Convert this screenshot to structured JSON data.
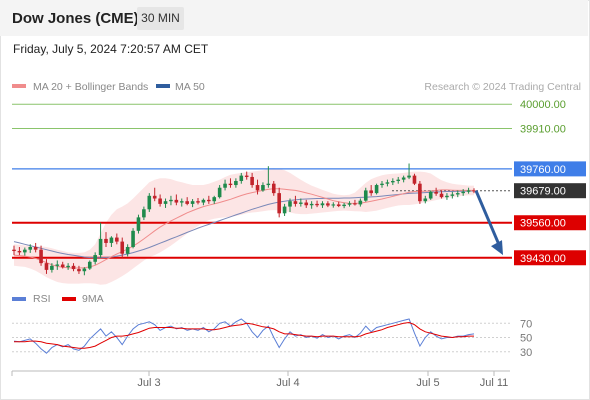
{
  "header": {
    "instrument": "Dow Jones (CME)",
    "timeframe": "30 MIN"
  },
  "datetime": "Friday, July 5, 2024 7:20:57 AM CET",
  "legend": {
    "items": [
      {
        "label": "MA 20 + Bollinger Bands",
        "color": "#f08c8c"
      },
      {
        "label": "MA 50",
        "color": "#2f5d9e"
      }
    ],
    "credit": "Research © 2024 Trading Central"
  },
  "rsi_legend": {
    "items": [
      {
        "label": "RSI",
        "color": "#5b7fd6"
      },
      {
        "label": "9MA",
        "color": "#e00000"
      }
    ]
  },
  "chart_data": {
    "type": "candlestick",
    "price_axis": {
      "range": [
        39340,
        40090
      ]
    },
    "levels": [
      {
        "value": 40000.0,
        "label": "40000.00",
        "type": "target",
        "color": "#8ac46b"
      },
      {
        "value": 39910.0,
        "label": "39910.00",
        "type": "target",
        "color": "#8ac46b"
      },
      {
        "value": 39760.0,
        "label": "39760.00",
        "type": "pivot",
        "color": "#3f7ee8"
      },
      {
        "value": 39679.0,
        "label": "39679.00",
        "type": "last_price",
        "color": "#333333"
      },
      {
        "value": 39560.0,
        "label": "39560.00",
        "type": "support",
        "color": "#dd0000"
      },
      {
        "value": 39430.0,
        "label": "39430.00",
        "type": "support",
        "color": "#dd0000"
      }
    ],
    "forecast": {
      "from": 39679,
      "to": 39440,
      "direction": "down"
    },
    "x_axis": {
      "ticks": [
        "Jul 3",
        "Jul 4",
        "Jul 5",
        "Jul 11"
      ]
    },
    "candles": [
      [
        39460,
        39475,
        39440,
        39455
      ],
      [
        39455,
        39470,
        39440,
        39450
      ],
      [
        39450,
        39468,
        39438,
        39460
      ],
      [
        39460,
        39480,
        39448,
        39470
      ],
      [
        39470,
        39485,
        39450,
        39460
      ],
      [
        39460,
        39475,
        39400,
        39410
      ],
      [
        39410,
        39425,
        39370,
        39385
      ],
      [
        39385,
        39410,
        39375,
        39400
      ],
      [
        39400,
        39420,
        39385,
        39405
      ],
      [
        39405,
        39415,
        39390,
        39395
      ],
      [
        39395,
        39410,
        39385,
        39400
      ],
      [
        39400,
        39410,
        39380,
        39388
      ],
      [
        39388,
        39400,
        39370,
        39380
      ],
      [
        39380,
        39395,
        39365,
        39390
      ],
      [
        39390,
        39420,
        39385,
        39415
      ],
      [
        39415,
        39450,
        39405,
        39440
      ],
      [
        39440,
        39560,
        39430,
        39500
      ],
      [
        39500,
        39525,
        39470,
        39485
      ],
      [
        39485,
        39510,
        39470,
        39505
      ],
      [
        39505,
        39520,
        39480,
        39490
      ],
      [
        39490,
        39505,
        39430,
        39445
      ],
      [
        39445,
        39480,
        39435,
        39470
      ],
      [
        39470,
        39540,
        39465,
        39530
      ],
      [
        39530,
        39590,
        39520,
        39580
      ],
      [
        39580,
        39620,
        39570,
        39610
      ],
      [
        39610,
        39670,
        39600,
        39660
      ],
      [
        39660,
        39690,
        39640,
        39650
      ],
      [
        39650,
        39665,
        39620,
        39630
      ],
      [
        39630,
        39650,
        39615,
        39640
      ],
      [
        39640,
        39660,
        39625,
        39645
      ],
      [
        39645,
        39665,
        39625,
        39635
      ],
      [
        39635,
        39650,
        39620,
        39640
      ],
      [
        39640,
        39655,
        39625,
        39630
      ],
      [
        39630,
        39648,
        39618,
        39640
      ],
      [
        39640,
        39652,
        39628,
        39635
      ],
      [
        39635,
        39650,
        39625,
        39645
      ],
      [
        39645,
        39660,
        39630,
        39640
      ],
      [
        39640,
        39660,
        39630,
        39655
      ],
      [
        39655,
        39700,
        39650,
        39690
      ],
      [
        39690,
        39720,
        39680,
        39705
      ],
      [
        39705,
        39725,
        39690,
        39700
      ],
      [
        39700,
        39725,
        39690,
        39715
      ],
      [
        39715,
        39745,
        39705,
        39735
      ],
      [
        39735,
        39750,
        39720,
        39730
      ],
      [
        39730,
        39745,
        39690,
        39700
      ],
      [
        39700,
        39720,
        39665,
        39680
      ],
      [
        39680,
        39710,
        39675,
        39700
      ],
      [
        39700,
        39770,
        39690,
        39705
      ],
      [
        39705,
        39715,
        39660,
        39670
      ],
      [
        39670,
        39690,
        39580,
        39595
      ],
      [
        39595,
        39630,
        39585,
        39620
      ],
      [
        39620,
        39650,
        39600,
        39640
      ],
      [
        39640,
        39660,
        39620,
        39630
      ],
      [
        39630,
        39650,
        39620,
        39635
      ],
      [
        39635,
        39645,
        39615,
        39625
      ],
      [
        39625,
        39640,
        39612,
        39630
      ],
      [
        39630,
        39642,
        39618,
        39625
      ],
      [
        39625,
        39640,
        39615,
        39632
      ],
      [
        39632,
        39640,
        39618,
        39624
      ],
      [
        39624,
        39636,
        39616,
        39628
      ],
      [
        39628,
        39638,
        39618,
        39622
      ],
      [
        39622,
        39634,
        39614,
        39627
      ],
      [
        39627,
        39640,
        39620,
        39632
      ],
      [
        39632,
        39645,
        39624,
        39628
      ],
      [
        39628,
        39650,
        39620,
        39642
      ],
      [
        39642,
        39690,
        39638,
        39680
      ],
      [
        39680,
        39700,
        39660,
        39670
      ],
      [
        39670,
        39705,
        39665,
        39700
      ],
      [
        39700,
        39715,
        39690,
        39705
      ],
      [
        39705,
        39720,
        39695,
        39710
      ],
      [
        39710,
        39725,
        39700,
        39715
      ],
      [
        39715,
        39730,
        39705,
        39720
      ],
      [
        39720,
        39735,
        39710,
        39728
      ],
      [
        39728,
        39780,
        39722,
        39735
      ],
      [
        39735,
        39742,
        39700,
        39705
      ],
      [
        39705,
        39715,
        39630,
        39640
      ],
      [
        39640,
        39660,
        39632,
        39650
      ],
      [
        39650,
        39680,
        39645,
        39675
      ],
      [
        39675,
        39690,
        39660,
        39668
      ],
      [
        39668,
        39680,
        39650,
        39655
      ],
      [
        39655,
        39670,
        39645,
        39660
      ],
      [
        39660,
        39675,
        39650,
        39665
      ],
      [
        39665,
        39680,
        39655,
        39670
      ],
      [
        39670,
        39685,
        39660,
        39675
      ],
      [
        39675,
        39690,
        39668,
        39680
      ],
      [
        39680,
        39688,
        39670,
        39679
      ]
    ],
    "ma20": [
      39440,
      39438,
      39436,
      39433,
      39428,
      39420,
      39412,
      39404,
      39398,
      39395,
      39393,
      39392,
      39392,
      39393,
      39396,
      39402,
      39412,
      39423,
      39434,
      39444,
      39453,
      39462,
      39473,
      39486,
      39500,
      39515,
      39530,
      39544,
      39556,
      39567,
      39577,
      39587,
      39597,
      39605,
      39613,
      39620,
      39625,
      39630,
      39635,
      39641,
      39647,
      39654,
      39661,
      39667,
      39672,
      39676,
      39680,
      39684,
      39686,
      39686,
      39684,
      39682,
      39680,
      39676,
      39671,
      39666,
      39660,
      39654,
      39648,
      39642,
      39638,
      39634,
      39632,
      39632,
      39633,
      39636,
      39640,
      39644,
      39648,
      39653,
      39658,
      39663,
      39668,
      39673,
      39676,
      39677,
      39677,
      39678,
      39680,
      39682,
      39682,
      39681,
      39680,
      39680,
      39680,
      39680
    ],
    "ma50": [
      39490,
      39485,
      39480,
      39475,
      39470,
      39465,
      39460,
      39455,
      39450,
      39446,
      39442,
      39439,
      39436,
      39433,
      39431,
      39430,
      39430,
      39431,
      39433,
      39436,
      39440,
      39444,
      39449,
      39455,
      39461,
      39468,
      39476,
      39484,
      39492,
      39500,
      39508,
      39516,
      39524,
      39532,
      39540,
      39547,
      39554,
      39561,
      39568,
      39575,
      39582,
      39589,
      39596,
      39603,
      39610,
      39616,
      39622,
      39628,
      39633,
      39637,
      39640,
      39643,
      39645,
      39647,
      39648,
      39649,
      39650,
      39650,
      39651,
      39651,
      39651,
      39652,
      39652,
      39653,
      39654,
      39655,
      39656,
      39657,
      39659,
      39661,
      39663,
      39665,
      39667,
      39669,
      39670,
      39671,
      39672,
      39673,
      39674,
      39675,
      39676,
      39676,
      39677,
      39677,
      39678,
      39678
    ],
    "bollinger_upper": [
      39480,
      39478,
      39476,
      39474,
      39472,
      39472,
      39470,
      39465,
      39460,
      39455,
      39450,
      39448,
      39448,
      39450,
      39460,
      39480,
      39520,
      39560,
      39590,
      39610,
      39620,
      39632,
      39650,
      39670,
      39690,
      39710,
      39720,
      39725,
      39725,
      39722,
      39715,
      39710,
      39705,
      39700,
      39700,
      39700,
      39705,
      39712,
      39720,
      39730,
      39738,
      39742,
      39745,
      39748,
      39750,
      39752,
      39755,
      39760,
      39762,
      39760,
      39755,
      39745,
      39732,
      39720,
      39708,
      39698,
      39690,
      39682,
      39675,
      39668,
      39664,
      39662,
      39664,
      39672,
      39690,
      39708,
      39722,
      39730,
      39736,
      39740,
      39742,
      39743,
      39745,
      39748,
      39750,
      39750,
      39748,
      39743,
      39730,
      39718,
      39710,
      39705,
      39702,
      39700,
      39698,
      39698
    ],
    "bollinger_lower": [
      39400,
      39398,
      39396,
      39390,
      39382,
      39370,
      39358,
      39348,
      39340,
      39336,
      39334,
      39334,
      39334,
      39335,
      39335,
      39334,
      39330,
      39332,
      39340,
      39350,
      39362,
      39375,
      39390,
      39405,
      39420,
      39432,
      39440,
      39450,
      39462,
      39475,
      39490,
      39505,
      39520,
      39535,
      39548,
      39560,
      39570,
      39575,
      39578,
      39580,
      39582,
      39585,
      39590,
      39595,
      39598,
      39600,
      39603,
      39606,
      39607,
      39606,
      39604,
      39598,
      39594,
      39592,
      39592,
      39594,
      39596,
      39598,
      39600,
      39602,
      39604,
      39605,
      39604,
      39603,
      39602,
      39600,
      39602,
      39605,
      39610,
      39615,
      39620,
      39624,
      39626,
      39626,
      39628,
      39632,
      39636,
      39640,
      39644,
      39648,
      39652,
      39655,
      39658,
      39660,
      39662,
      39662
    ],
    "rsi_panel": {
      "axis_labels": [
        "70",
        "50",
        "30"
      ],
      "rsi": [
        45,
        44,
        46,
        48,
        42,
        34,
        28,
        36,
        40,
        37,
        40,
        34,
        32,
        38,
        48,
        55,
        62,
        52,
        58,
        50,
        40,
        52,
        62,
        68,
        70,
        72,
        68,
        60,
        64,
        66,
        62,
        64,
        60,
        62,
        60,
        64,
        58,
        62,
        70,
        72,
        66,
        72,
        76,
        70,
        58,
        50,
        60,
        66,
        50,
        36,
        48,
        58,
        52,
        54,
        50,
        52,
        49,
        54,
        50,
        52,
        48,
        52,
        54,
        50,
        56,
        66,
        58,
        64,
        66,
        68,
        70,
        72,
        74,
        76,
        56,
        38,
        50,
        58,
        52,
        48,
        50,
        50,
        52,
        52,
        54,
        55
      ],
      "rsi_9ma": [
        44,
        44,
        44,
        45,
        45,
        44,
        42,
        41,
        40,
        38,
        37,
        36,
        35,
        35,
        36,
        38,
        42,
        46,
        50,
        52,
        52,
        53,
        55,
        57,
        60,
        63,
        64,
        64,
        64,
        64,
        63,
        63,
        62,
        62,
        62,
        62,
        61,
        61,
        62,
        64,
        66,
        67,
        68,
        70,
        69,
        67,
        65,
        64,
        62,
        58,
        55,
        55,
        54,
        53,
        52,
        52,
        51,
        52,
        52,
        52,
        51,
        51,
        51,
        51,
        52,
        55,
        57,
        59,
        61,
        64,
        66,
        68,
        70,
        71,
        68,
        62,
        58,
        56,
        54,
        52,
        51,
        50,
        51,
        51,
        52,
        52
      ]
    }
  }
}
